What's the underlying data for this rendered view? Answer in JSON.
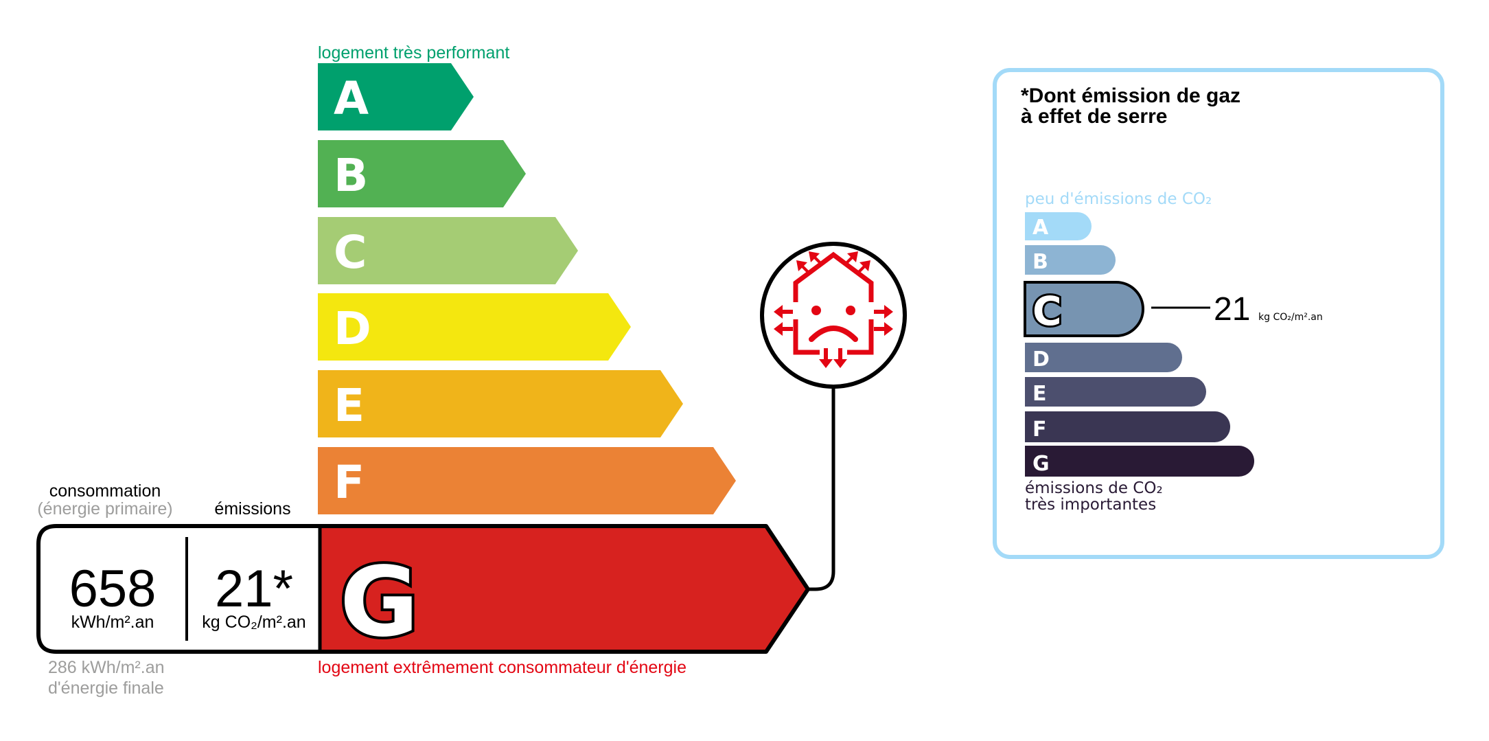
{
  "energy": {
    "top_label": "logement très performant",
    "bottom_label": "logement extrêmement consommateur d'énergie",
    "classes": [
      {
        "letter": "A",
        "color": "#00a06d"
      },
      {
        "letter": "B",
        "color": "#52b153"
      },
      {
        "letter": "C",
        "color": "#a5cc74"
      },
      {
        "letter": "D",
        "color": "#f4e70f"
      },
      {
        "letter": "E",
        "color": "#f0b41a"
      },
      {
        "letter": "F",
        "color": "#eb8235"
      },
      {
        "letter": "G",
        "color": "#d7221f"
      }
    ],
    "current_class": "G",
    "consumption_label": "consommation",
    "consumption_sublabel": "(énergie primaire)",
    "emissions_label": "émissions",
    "consumption_value": "658",
    "consumption_unit": "kWh/m².an",
    "emissions_value": "21*",
    "emissions_unit": "kg CO₂/m².an",
    "final_energy_value": "286 kWh/m².an",
    "final_energy_label": "d'énergie finale",
    "icon": "house-heat-loss-sad-icon",
    "accent_color": "#e30613"
  },
  "ges": {
    "title_line1": "*Dont émission de gaz",
    "title_line2": "à effet de serre",
    "top_label": "peu d'émissions de CO₂",
    "bottom_label_line1": "émissions de CO₂",
    "bottom_label_line2": "très importantes",
    "classes": [
      {
        "letter": "A",
        "color": "#a3daf8"
      },
      {
        "letter": "B",
        "color": "#8db4d3"
      },
      {
        "letter": "C",
        "color": "#7794b1"
      },
      {
        "letter": "D",
        "color": "#606f8f"
      },
      {
        "letter": "E",
        "color": "#4c4f6e"
      },
      {
        "letter": "F",
        "color": "#3a3653"
      },
      {
        "letter": "G",
        "color": "#291a35"
      }
    ],
    "current_class": "C",
    "value": "21",
    "unit": "kg CO₂/m².an",
    "border_color": "#a3daf8"
  }
}
